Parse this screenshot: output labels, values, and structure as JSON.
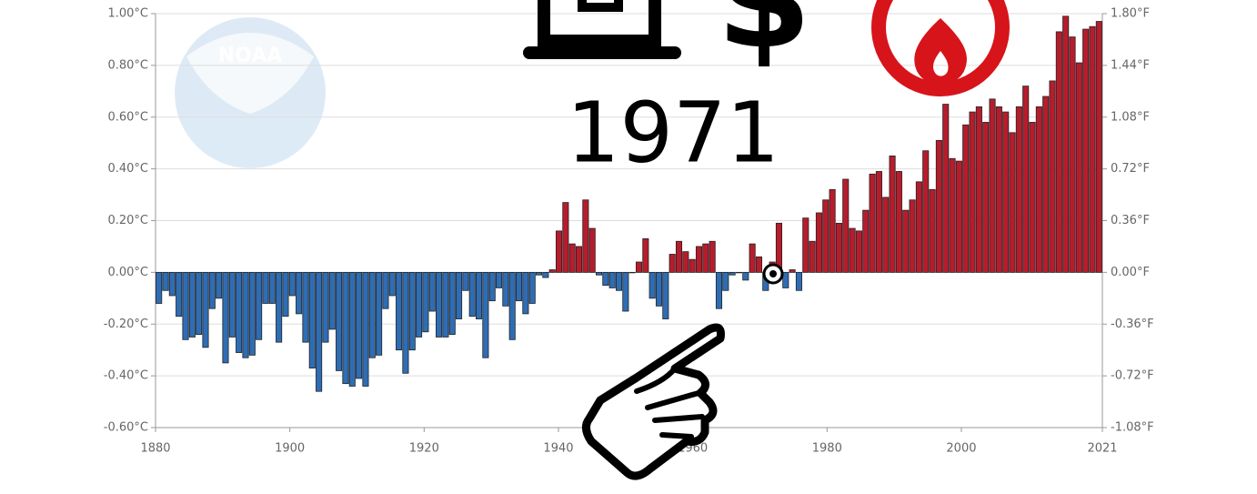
{
  "chart_data": {
    "type": "bar",
    "annotations": [
      "1971",
      "$"
    ],
    "watermark": "NOAA",
    "x": [
      1880,
      1881,
      1882,
      1883,
      1884,
      1885,
      1886,
      1887,
      1888,
      1889,
      1890,
      1891,
      1892,
      1893,
      1894,
      1895,
      1896,
      1897,
      1898,
      1899,
      1900,
      1901,
      1902,
      1903,
      1904,
      1905,
      1906,
      1907,
      1908,
      1909,
      1910,
      1911,
      1912,
      1913,
      1914,
      1915,
      1916,
      1917,
      1918,
      1919,
      1920,
      1921,
      1922,
      1923,
      1924,
      1925,
      1926,
      1927,
      1928,
      1929,
      1930,
      1931,
      1932,
      1933,
      1934,
      1935,
      1936,
      1937,
      1938,
      1939,
      1940,
      1941,
      1942,
      1943,
      1944,
      1945,
      1946,
      1947,
      1948,
      1949,
      1950,
      1951,
      1952,
      1953,
      1954,
      1955,
      1956,
      1957,
      1958,
      1959,
      1960,
      1961,
      1962,
      1963,
      1964,
      1965,
      1966,
      1967,
      1968,
      1969,
      1970,
      1971,
      1972,
      1973,
      1974,
      1975,
      1976,
      1977,
      1978,
      1979,
      1980,
      1981,
      1982,
      1983,
      1984,
      1985,
      1986,
      1987,
      1988,
      1989,
      1990,
      1991,
      1992,
      1993,
      1994,
      1995,
      1996,
      1997,
      1998,
      1999,
      2000,
      2001,
      2002,
      2003,
      2004,
      2005,
      2006,
      2007,
      2008,
      2009,
      2010,
      2011,
      2012,
      2013,
      2014,
      2015,
      2016,
      2017,
      2018,
      2019,
      2020,
      2021
    ],
    "values": [
      -0.12,
      -0.07,
      -0.09,
      -0.17,
      -0.26,
      -0.25,
      -0.24,
      -0.29,
      -0.14,
      -0.1,
      -0.35,
      -0.25,
      -0.31,
      -0.33,
      -0.32,
      -0.26,
      -0.12,
      -0.12,
      -0.27,
      -0.17,
      -0.09,
      -0.16,
      -0.27,
      -0.37,
      -0.46,
      -0.27,
      -0.22,
      -0.38,
      -0.43,
      -0.44,
      -0.41,
      -0.44,
      -0.33,
      -0.32,
      -0.14,
      -0.09,
      -0.3,
      -0.39,
      -0.3,
      -0.25,
      -0.23,
      -0.15,
      -0.25,
      -0.25,
      -0.24,
      -0.18,
      -0.07,
      -0.17,
      -0.18,
      -0.33,
      -0.11,
      -0.06,
      -0.13,
      -0.26,
      -0.11,
      -0.16,
      -0.12,
      -0.01,
      -0.02,
      0.01,
      0.16,
      0.27,
      0.11,
      0.1,
      0.28,
      0.17,
      -0.01,
      -0.05,
      -0.06,
      -0.07,
      -0.15,
      0.0,
      0.04,
      0.13,
      -0.1,
      -0.13,
      -0.18,
      0.07,
      0.12,
      0.08,
      0.05,
      0.1,
      0.11,
      0.12,
      -0.14,
      -0.07,
      -0.01,
      0.0,
      -0.03,
      0.11,
      0.06,
      -0.07,
      0.04,
      0.19,
      -0.06,
      0.01,
      -0.07,
      0.21,
      0.12,
      0.23,
      0.28,
      0.32,
      0.19,
      0.36,
      0.17,
      0.16,
      0.24,
      0.38,
      0.39,
      0.29,
      0.45,
      0.39,
      0.24,
      0.28,
      0.35,
      0.47,
      0.32,
      0.51,
      0.65,
      0.44,
      0.43,
      0.57,
      0.62,
      0.64,
      0.58,
      0.67,
      0.64,
      0.62,
      0.54,
      0.64,
      0.72,
      0.58,
      0.64,
      0.68,
      0.74,
      0.93,
      0.99,
      0.91,
      0.81,
      0.94,
      0.95,
      0.97
    ],
    "colors": {
      "positive": "#b71c2c",
      "negative": "#2e6db4"
    },
    "xlim": [
      1880,
      2021
    ],
    "xticks": [
      1880,
      1900,
      1920,
      1940,
      1960,
      1980,
      2000,
      2021
    ],
    "ylim": [
      -0.6,
      1.0
    ],
    "yticks": [
      {
        "value": -0.6,
        "label": "-0.60°C"
      },
      {
        "value": -0.4,
        "label": "-0.40°C"
      },
      {
        "value": -0.2,
        "label": "-0.20°C"
      },
      {
        "value": 0,
        "label": "0.00°C"
      },
      {
        "value": 0.2,
        "label": "0.20°C"
      },
      {
        "value": 0.4,
        "label": "0.40°C"
      },
      {
        "value": 0.6,
        "label": "0.60°C"
      },
      {
        "value": 0.8,
        "label": "0.80°C"
      },
      {
        "value": 1.0,
        "label": "1.00°C"
      }
    ],
    "y2lim": [
      -1.08,
      1.8
    ],
    "y2ticks": [
      {
        "value": -1.08,
        "label": "-1.08°F"
      },
      {
        "value": -0.72,
        "label": "-0.72°F"
      },
      {
        "value": -0.36,
        "label": "-0.36°F"
      },
      {
        "value": 0,
        "label": "0.00°F"
      },
      {
        "value": 0.36,
        "label": "0.36°F"
      },
      {
        "value": 0.72,
        "label": "0.72°F"
      },
      {
        "value": 1.08,
        "label": "1.08°F"
      },
      {
        "value": 1.44,
        "label": "1.44°F"
      },
      {
        "value": 1.8,
        "label": "1.80°F"
      }
    ],
    "grid": true
  }
}
